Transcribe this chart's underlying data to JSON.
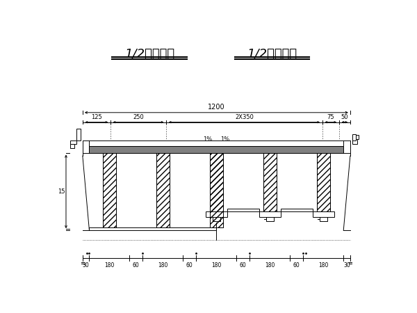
{
  "title_left": "1/2支点截面",
  "title_right": "1/2跨中截面",
  "bg_color": "#ffffff",
  "line_color": "#000000",
  "dim_1200": "1200",
  "dim_125": "125",
  "dim_250": "250",
  "dim_2x350": "2X350",
  "dim_75": "75",
  "dim_50": "50",
  "dim_15": "15",
  "slope_label": "1%",
  "bottom_dims": [
    "30",
    "180",
    "60",
    "180",
    "60",
    "180",
    "60",
    "180",
    "60",
    "180",
    "30"
  ],
  "slab_color": "#808080"
}
